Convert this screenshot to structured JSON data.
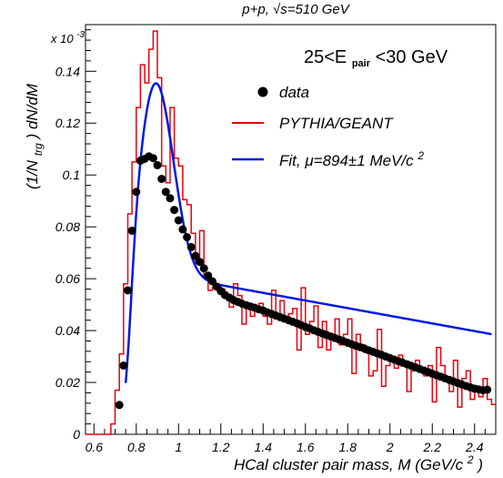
{
  "chart_data": {
    "type": "line",
    "title": "p+p, √s=510 GeV",
    "annotation": "25<E_pair<30 GeV",
    "annotation_main_left": "25<E",
    "annotation_sub": "pair",
    "annotation_main_right": "<30 GeV",
    "xlabel": "HCal cluster pair mass, M (GeV/c",
    "xlabel_sup": "2",
    "xlabel_close": ")",
    "ylabel": "(1/N",
    "ylabel_sub": "trg",
    "ylabel_rest": ") dN/dM",
    "y_multiplier": "x 10",
    "y_multiplier_exp": "-3",
    "xlim": [
      0.56,
      2.5
    ],
    "ylim": [
      0,
      0.158
    ],
    "x_ticks": [
      "0.6",
      "0.8",
      "1",
      "1.2",
      "1.4",
      "1.6",
      "1.8",
      "2",
      "2.2",
      "2.4"
    ],
    "y_ticks": [
      "0",
      "0.02",
      "0.04",
      "0.06",
      "0.08",
      "0.1",
      "0.12",
      "0.14"
    ],
    "legend_position": "top-right",
    "colors": {
      "data": "#000000",
      "pythia": "#e8000b",
      "fit": "#0018e0"
    },
    "series": [
      {
        "name": "data",
        "kind": "markers",
        "x": [
          0.72,
          0.74,
          0.76,
          0.78,
          0.8,
          0.82,
          0.84,
          0.86,
          0.88,
          0.9,
          0.92,
          0.94,
          0.96,
          0.98,
          1.0,
          1.02,
          1.04,
          1.06,
          1.08,
          1.1,
          1.12,
          1.14,
          1.16,
          1.18,
          1.2,
          1.22,
          1.24,
          1.26,
          1.28,
          1.3,
          1.32,
          1.34,
          1.36,
          1.38,
          1.4,
          1.42,
          1.44,
          1.46,
          1.48,
          1.5,
          1.52,
          1.54,
          1.56,
          1.58,
          1.6,
          1.62,
          1.64,
          1.66,
          1.68,
          1.7,
          1.72,
          1.74,
          1.76,
          1.78,
          1.8,
          1.82,
          1.84,
          1.86,
          1.88,
          1.9,
          1.92,
          1.94,
          1.96,
          1.98,
          2.0,
          2.02,
          2.04,
          2.06,
          2.08,
          2.1,
          2.12,
          2.14,
          2.16,
          2.18,
          2.2,
          2.22,
          2.24,
          2.26,
          2.28,
          2.3,
          2.32,
          2.34,
          2.36,
          2.38,
          2.4,
          2.42,
          2.44,
          2.46
        ],
        "y": [
          0.0113,
          0.0265,
          0.0555,
          0.0785,
          0.0935,
          0.1055,
          0.1062,
          0.1072,
          0.1065,
          0.1038,
          0.0985,
          0.0935,
          0.091,
          0.0865,
          0.0825,
          0.079,
          0.076,
          0.0722,
          0.0688,
          0.0665,
          0.064,
          0.0612,
          0.059,
          0.057,
          0.0552,
          0.0537,
          0.0527,
          0.0518,
          0.0511,
          0.0504,
          0.0498,
          0.0493,
          0.0488,
          0.0482,
          0.0477,
          0.047,
          0.0464,
          0.0458,
          0.0452,
          0.0446,
          0.044,
          0.0434,
          0.0428,
          0.0421,
          0.0414,
          0.0408,
          0.0401,
          0.0395,
          0.0389,
          0.0383,
          0.0377,
          0.0371,
          0.0365,
          0.0359,
          0.0353,
          0.0347,
          0.0341,
          0.0336,
          0.033,
          0.0324,
          0.0318,
          0.0312,
          0.0306,
          0.03,
          0.0294,
          0.0288,
          0.0282,
          0.0276,
          0.027,
          0.0264,
          0.0258,
          0.0252,
          0.0246,
          0.024,
          0.0234,
          0.0228,
          0.0222,
          0.0216,
          0.021,
          0.0204,
          0.0198,
          0.0192,
          0.0186,
          0.0181,
          0.0176,
          0.0173,
          0.017,
          0.0172
        ]
      },
      {
        "name": "PYTHIA/GEANT",
        "kind": "step",
        "x_edges": [
          0.56,
          0.68,
          0.7,
          0.72,
          0.74,
          0.76,
          0.78,
          0.8,
          0.82,
          0.84,
          0.86,
          0.88,
          0.9,
          0.92,
          0.94,
          0.96,
          0.98,
          1.0,
          1.02,
          1.04,
          1.06,
          1.08,
          1.1,
          1.12,
          1.14,
          1.16,
          1.18,
          1.2,
          1.22,
          1.24,
          1.26,
          1.28,
          1.3,
          1.32,
          1.34,
          1.36,
          1.38,
          1.4,
          1.42,
          1.44,
          1.46,
          1.48,
          1.5,
          1.52,
          1.54,
          1.56,
          1.58,
          1.6,
          1.62,
          1.64,
          1.66,
          1.68,
          1.7,
          1.72,
          1.74,
          1.76,
          1.78,
          1.8,
          1.82,
          1.84,
          1.86,
          1.88,
          1.9,
          1.92,
          1.94,
          1.96,
          1.98,
          2.0,
          2.02,
          2.04,
          2.06,
          2.08,
          2.1,
          2.12,
          2.14,
          2.16,
          2.18,
          2.2,
          2.22,
          2.24,
          2.26,
          2.28,
          2.3,
          2.32,
          2.34,
          2.36,
          2.38,
          2.4,
          2.42,
          2.44,
          2.46,
          2.48,
          2.5
        ],
        "values": [
          0.0,
          0.004,
          0.017,
          0.031,
          0.058,
          0.085,
          0.105,
          0.126,
          0.1425,
          0.1355,
          0.1485,
          0.1555,
          0.1375,
          0.1035,
          0.097,
          0.126,
          0.1065,
          0.1035,
          0.0905,
          0.0885,
          0.0775,
          0.066,
          0.0785,
          0.0605,
          0.0555,
          0.0565,
          0.0575,
          0.056,
          0.053,
          0.049,
          0.058,
          0.0535,
          0.0425,
          0.0495,
          0.0455,
          0.0475,
          0.0505,
          0.0455,
          0.0425,
          0.0555,
          0.0445,
          0.0515,
          0.0455,
          0.0465,
          0.0485,
          0.0325,
          0.0565,
          0.0385,
          0.0435,
          0.0495,
          0.0335,
          0.0435,
          0.0325,
          0.0365,
          0.0445,
          0.0345,
          0.0385,
          0.0445,
          0.0235,
          0.0385,
          0.0345,
          0.0315,
          0.0225,
          0.0245,
          0.0405,
          0.0185,
          0.0265,
          0.0285,
          0.0255,
          0.0305,
          0.0275,
          0.0165,
          0.0245,
          0.0285,
          0.0245,
          0.0225,
          0.0265,
          0.0125,
          0.0335,
          0.0265,
          0.0215,
          0.0165,
          0.0285,
          0.0105,
          0.0215,
          0.0245,
          0.0135,
          0.0185,
          0.0145,
          0.0215,
          0.0135,
          0.0115
        ]
      },
      {
        "name": "Fit, μ=894±1 MeV/c²",
        "name_main": "Fit, μ=894±1 MeV/c",
        "name_sup": "2",
        "kind": "curve",
        "mu": 0.894,
        "params": {
          "peak_amp": 0.0735,
          "peak_sigma": 0.082,
          "bkg_a": 0.0575,
          "bkg_b": 0.01475
        },
        "x_range": [
          0.75,
          2.48
        ]
      }
    ]
  }
}
